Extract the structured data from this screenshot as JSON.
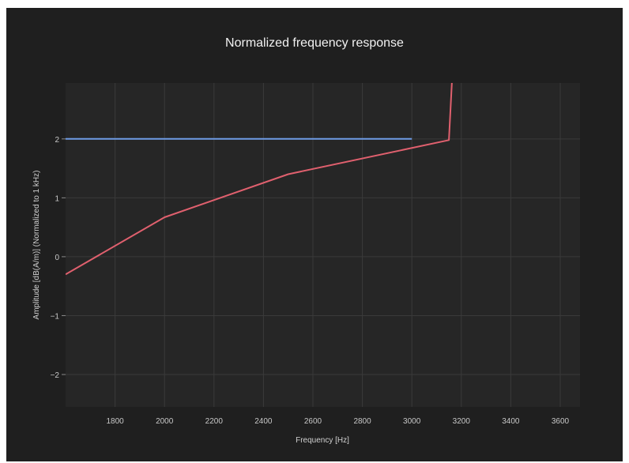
{
  "chart_data": {
    "type": "line",
    "title": "Normalized frequency response",
    "xlabel": "Frequency [Hz]",
    "ylabel": "Amplitude [dB(A/m)] (Normalized to 1 kHz)",
    "xlim": [
      1600,
      3680
    ],
    "ylim": [
      -2.55,
      2.95
    ],
    "x_ticks": [
      1800,
      2000,
      2200,
      2400,
      2600,
      2800,
      3000,
      3200,
      3400,
      3600
    ],
    "y_ticks": [
      -2,
      -1,
      0,
      1,
      2
    ],
    "grid": true,
    "series": [
      {
        "color": "#6f9ce6",
        "x": [
          1600,
          3000
        ],
        "y": [
          2,
          2
        ]
      },
      {
        "color": "#e0606e",
        "x": [
          1600,
          2000,
          2500,
          3150,
          3165
        ],
        "y": [
          -0.3,
          0.67,
          1.4,
          1.98,
          3.2
        ]
      }
    ]
  }
}
